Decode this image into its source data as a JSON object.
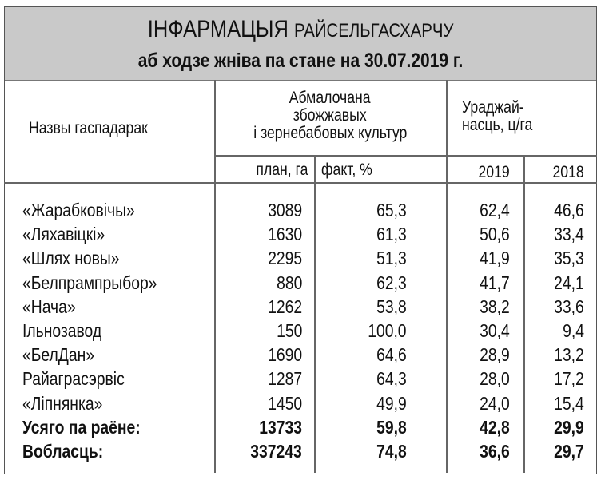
{
  "title": {
    "main": "ІНФАРМАЦЫЯ",
    "org": "РАЙСЕЛЬГАСХАРЧУ",
    "subtitle": "аб ходзе жніва па стане на 30.07.2019 г."
  },
  "headers": {
    "name": "Назвы гаспадарак",
    "threshed": [
      "Абмалочана",
      "збожжавых",
      "і зернебабовых культур"
    ],
    "yield": [
      "Ураджай-",
      "насць, ц/га"
    ],
    "plan": "план, га",
    "fact": "факт, %",
    "y2019": "2019",
    "y2018": "2018"
  },
  "rows": [
    {
      "name": "«Жарабковічы»",
      "plan": "3089",
      "fact": "65,3",
      "y2019": "62,4",
      "y2018": "46,6"
    },
    {
      "name": "«Ляхавіцкі»",
      "plan": "1630",
      "fact": "61,3",
      "y2019": "50,6",
      "y2018": "33,4"
    },
    {
      "name": "«Шлях новы»",
      "plan": "2295",
      "fact": "51,3",
      "y2019": "41,9",
      "y2018": "35,3"
    },
    {
      "name": "«Белпрампрыбор»",
      "plan": "880",
      "fact": "62,3",
      "y2019": "41,7",
      "y2018": "24,1"
    },
    {
      "name": "«Нача»",
      "plan": "1262",
      "fact": "53,8",
      "y2019": "38,2",
      "y2018": "33,6"
    },
    {
      "name": "Ільнозавод",
      "plan": "150",
      "fact": "100,0",
      "y2019": "30,4",
      "y2018": "9,4"
    },
    {
      "name": "«БелДан»",
      "plan": "1690",
      "fact": "64,6",
      "y2019": "28,9",
      "y2018": "13,2"
    },
    {
      "name": "Райаграсэрвіс",
      "plan": "1287",
      "fact": "64,3",
      "y2019": "28,0",
      "y2018": "17,2"
    },
    {
      "name": "«Ліпнянка»",
      "plan": "1450",
      "fact": "49,9",
      "y2019": "24,0",
      "y2018": "15,4"
    },
    {
      "name": "Усяго па раёне:",
      "plan": "13733",
      "fact": "59,8",
      "y2019": "42,8",
      "y2018": "29,9",
      "bold": true
    },
    {
      "name": "Вобласць:",
      "plan": "337243",
      "fact": "74,8",
      "y2019": "36,6",
      "y2018": "29,7",
      "bold": true
    }
  ],
  "colors": {
    "header_bg": "#c9c9c9",
    "border": "#666666"
  }
}
